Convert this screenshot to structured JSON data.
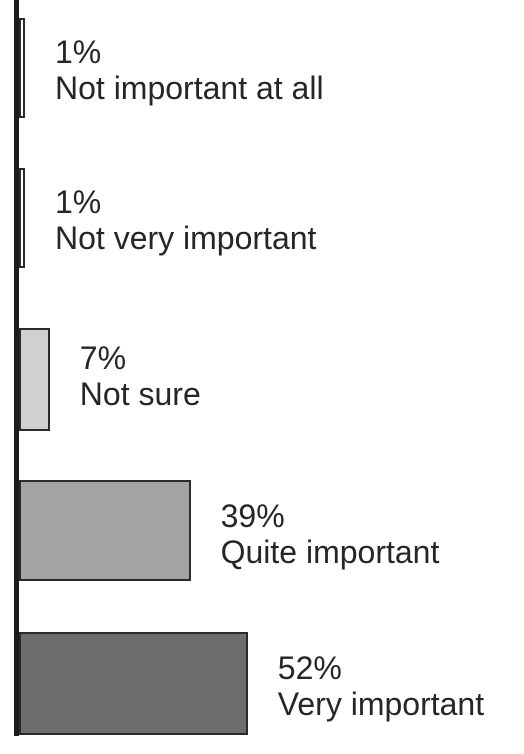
{
  "chart_data": {
    "type": "bar",
    "orientation": "horizontal",
    "categories": [
      "Not important at all",
      "Not very important",
      "Not sure",
      "Quite important",
      "Very important"
    ],
    "values": [
      1,
      1,
      7,
      39,
      52
    ],
    "value_labels": [
      "1%",
      "1%",
      "7%",
      "39%",
      "52%"
    ],
    "colors": [
      "#ffffff",
      "#ffffff",
      "#d0d0d0",
      "#a3a3a3",
      "#6d6d6d"
    ],
    "unit": "%",
    "title": "",
    "xlabel": "",
    "ylabel": "",
    "grid": false,
    "legend": "none"
  }
}
